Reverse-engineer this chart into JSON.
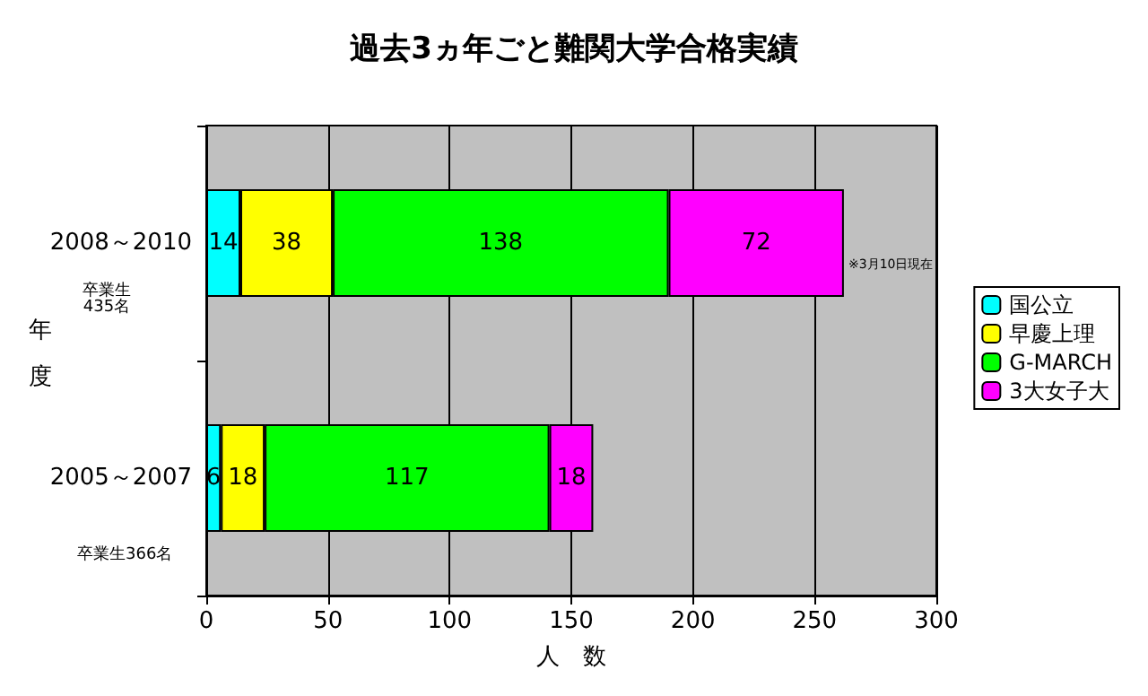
{
  "chart_data": {
    "type": "bar",
    "orientation": "horizontal",
    "stacked": true,
    "title": "過去3ヵ年ごと難関大学合格実績",
    "xlabel": "人　数",
    "ylabel": "年度",
    "categories": [
      "2008～2010",
      "2005～2007"
    ],
    "series": [
      {
        "name": "国公立",
        "color": "#00ffff",
        "values": [
          14,
          6
        ]
      },
      {
        "name": "早慶上理",
        "color": "#ffff00",
        "values": [
          38,
          18
        ]
      },
      {
        "name": "G-MARCH",
        "color": "#00ff00",
        "values": [
          138,
          117
        ]
      },
      {
        "name": "3大女子大",
        "color": "#ff00ff",
        "values": [
          72,
          18
        ]
      }
    ],
    "xlim": [
      0,
      300
    ],
    "xticks": [
      0,
      50,
      100,
      150,
      200,
      250,
      300
    ],
    "grid": "x",
    "legend": "right",
    "data_labels": true,
    "annotations": [
      "卒業生\n435名",
      "卒業生366名",
      "※3月10日現在"
    ]
  }
}
